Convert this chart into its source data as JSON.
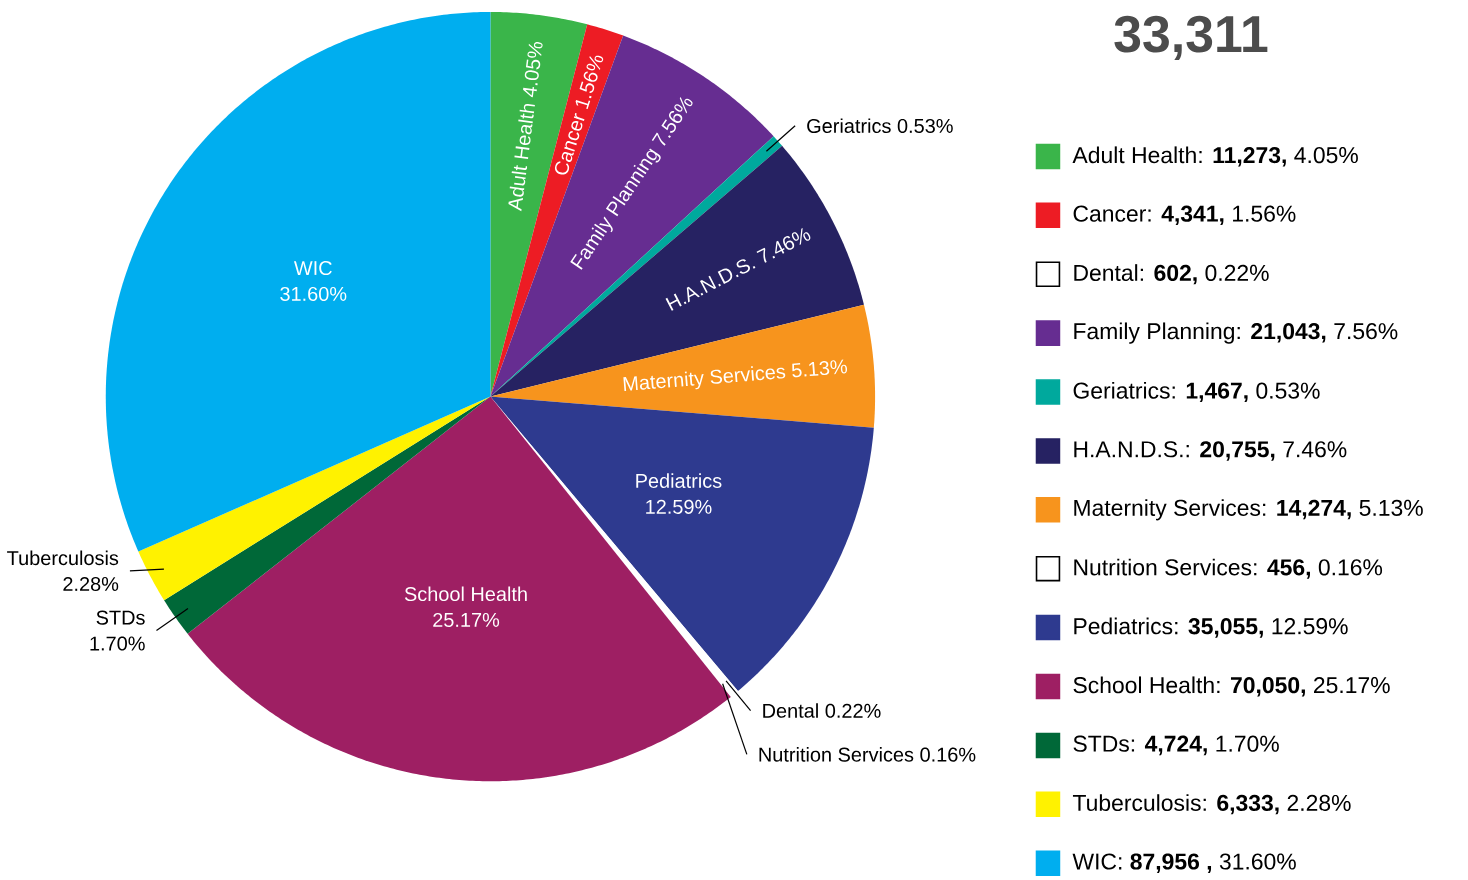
{
  "chart_data": {
    "type": "pie",
    "title": "33,311",
    "categories": [
      "Adult Health",
      "Cancer",
      "Family Planning",
      "Geriatrics",
      "H.A.N.D.S.",
      "Maternity Services",
      "Pediatrics",
      "Dental",
      "Nutrition Services",
      "School Health",
      "STDs",
      "Tuberculosis",
      "WIC"
    ],
    "values": [
      4.05,
      1.56,
      7.56,
      0.53,
      7.46,
      5.13,
      12.59,
      0.22,
      0.16,
      25.17,
      1.7,
      2.28,
      31.6
    ],
    "value_labels": [
      "4.05%",
      "1.56%",
      "7.56%",
      "0.53%",
      "7.46%",
      "5.13%",
      "12.59%",
      "0.22%",
      "0.16%",
      "25.17%",
      "1.70%",
      "2.28%",
      "31.60%"
    ],
    "colors": [
      "#3ab54a",
      "#ed1c24",
      "#662d91",
      "#00a99d",
      "#262262",
      "#f7941d",
      "#2e3a8f",
      "#ffffff",
      "#ffffff",
      "#9e1f63",
      "#006838",
      "#fff200",
      "#00aeef"
    ],
    "legend": "right",
    "annotations": [
      ": **11,273,** 4.05%",
      ": **4,341,** 1.56%",
      ": **602,** 0.22%",
      ": **21,043,** 7.56%",
      ": **1,467,** 0.53%",
      ": **20,755,** 7.46%",
      ": **14,274,** 5.13%",
      ": **456,** 0.16%",
      ": **35,055,** 12.59%",
      ": **70,050,** 25.17%",
      ": **4,724,** 1.70%",
      ": **6,333,** 2.28%",
      ": **87,956 ,** 31.60%"
    ]
  }
}
